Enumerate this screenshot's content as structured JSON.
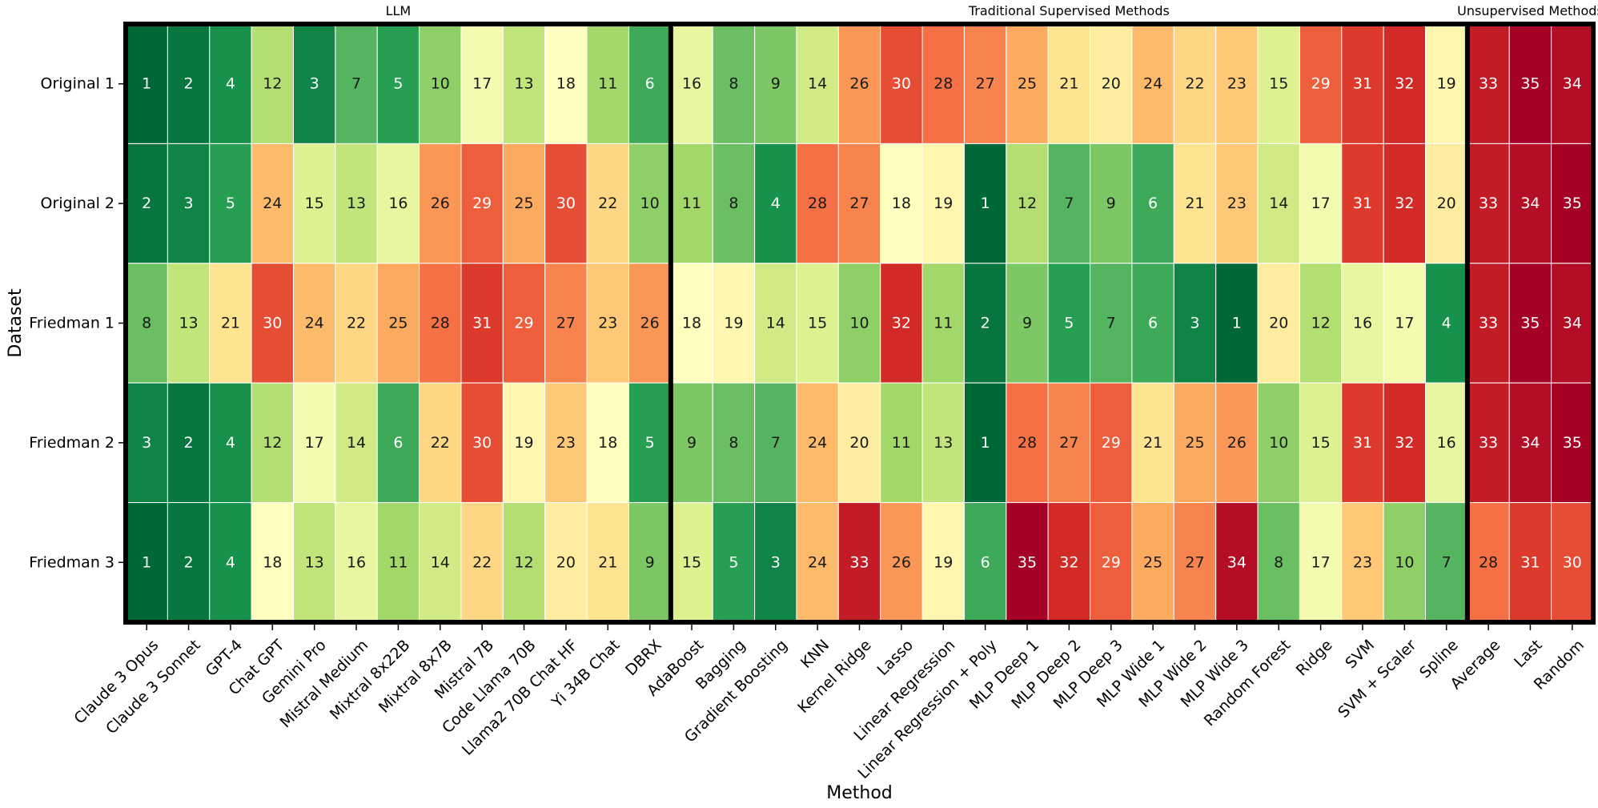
{
  "chart_data": {
    "type": "heatmap",
    "xlabel": "Method",
    "ylabel": "Dataset",
    "rows": [
      "Original 1",
      "Original 2",
      "Friedman 1",
      "Friedman 2",
      "Friedman 3"
    ],
    "columns": [
      "Claude 3 Opus",
      "Claude 3 Sonnet",
      "GPT-4",
      "Chat GPT",
      "Gemini Pro",
      "Mistral Medium",
      "Mixtral 8x22B",
      "Mixtral 8x7B",
      "Mistral 7B",
      "Code Llama 70B",
      "Llama2 70B Chat HF",
      "Yi 34B Chat",
      "DBRX",
      "AdaBoost",
      "Bagging",
      "Gradient Boosting",
      "KNN",
      "Kernel Ridge",
      "Lasso",
      "Linear Regression",
      "Linear Regression + Poly",
      "MLP Deep 1",
      "MLP Deep 2",
      "MLP Deep 3",
      "MLP Wide 1",
      "MLP Wide 2",
      "MLP Wide 3",
      "Random Forest",
      "Ridge",
      "SVM",
      "SVM + Scaler",
      "Spline",
      "Average",
      "Last",
      "Random"
    ],
    "groups": [
      {
        "label": "LLM",
        "start": 0,
        "end": 12
      },
      {
        "label": "Traditional Supervised Methods",
        "start": 13,
        "end": 31
      },
      {
        "label": "Unsupervised Methods",
        "start": 32,
        "end": 34
      }
    ],
    "value_range": [
      1,
      35
    ],
    "colormap": "RdYlGn_r",
    "values": [
      [
        1,
        2,
        4,
        12,
        3,
        7,
        5,
        10,
        17,
        13,
        18,
        11,
        6,
        16,
        8,
        9,
        14,
        26,
        30,
        28,
        27,
        25,
        21,
        20,
        24,
        22,
        23,
        15,
        29,
        31,
        32,
        19,
        33,
        35,
        34
      ],
      [
        2,
        3,
        5,
        24,
        15,
        13,
        16,
        26,
        29,
        25,
        30,
        22,
        10,
        11,
        8,
        4,
        28,
        27,
        18,
        19,
        1,
        12,
        7,
        9,
        6,
        21,
        23,
        14,
        17,
        31,
        32,
        20,
        33,
        34,
        35
      ],
      [
        8,
        13,
        21,
        30,
        24,
        22,
        25,
        28,
        31,
        29,
        27,
        23,
        26,
        18,
        19,
        14,
        15,
        10,
        32,
        11,
        2,
        9,
        5,
        7,
        6,
        3,
        1,
        20,
        12,
        16,
        17,
        4,
        33,
        35,
        34
      ],
      [
        3,
        2,
        4,
        12,
        17,
        14,
        6,
        22,
        30,
        19,
        23,
        18,
        5,
        9,
        8,
        7,
        24,
        20,
        11,
        13,
        1,
        28,
        27,
        29,
        21,
        25,
        26,
        10,
        15,
        31,
        32,
        16,
        33,
        34,
        35
      ],
      [
        1,
        2,
        4,
        18,
        13,
        16,
        11,
        14,
        22,
        12,
        20,
        21,
        9,
        15,
        5,
        3,
        24,
        33,
        26,
        19,
        6,
        35,
        32,
        29,
        25,
        27,
        34,
        8,
        17,
        23,
        10,
        7,
        28,
        31,
        30
      ]
    ]
  }
}
